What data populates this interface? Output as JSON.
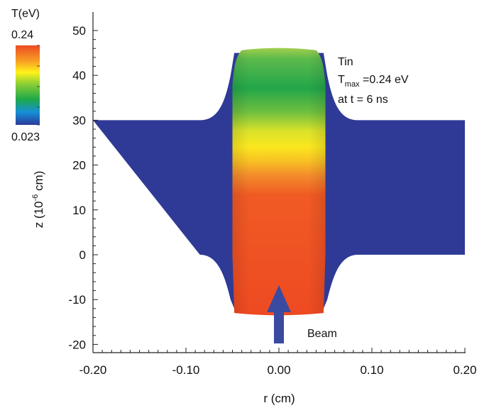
{
  "chart_data": {
    "type": "heatmap",
    "xlabel": "r (cm)",
    "ylabel_main": "z (10",
    "ylabel_sup": "-6",
    "ylabel_tail": " cm)",
    "xlim": [
      -0.2,
      0.2
    ],
    "ylim": [
      -22,
      55
    ],
    "x_ticks": [
      {
        "value": -0.2,
        "label": "-0.20"
      },
      {
        "value": -0.1,
        "label": "-0.10"
      },
      {
        "value": 0.0,
        "label": "0.00"
      },
      {
        "value": 0.1,
        "label": "0.10"
      },
      {
        "value": 0.2,
        "label": "0.20"
      }
    ],
    "y_ticks": [
      {
        "value": -20,
        "label": "-20"
      },
      {
        "value": -10,
        "label": "-10"
      },
      {
        "value": 0,
        "label": "0"
      },
      {
        "value": 10,
        "label": "10"
      },
      {
        "value": 20,
        "label": "20"
      },
      {
        "value": 30,
        "label": "30"
      },
      {
        "value": 40,
        "label": "40"
      },
      {
        "value": 50,
        "label": "50"
      }
    ],
    "colorbar": {
      "title": "T(eV)",
      "max_label": "0.24",
      "min_label": "0.023",
      "colors": [
        "#2b3a98",
        "#1590d8",
        "#1ea84a",
        "#8ecf35",
        "#fff21a",
        "#f7a025",
        "#ee4a22"
      ]
    },
    "colors": {
      "slab": "#2f3a96",
      "hot": "#ee4e22",
      "warm": "#f9d31d",
      "cool": "#2aa94a",
      "top": "#9ccd4a",
      "beam_arrow": "#3a4aa0"
    },
    "annotation": {
      "material": "Tin",
      "tmax_prefix": "T",
      "tmax_sub": "max",
      "tmax_value": " =0.24 eV",
      "time": "at t = 6 ns",
      "beam": "Beam"
    }
  }
}
